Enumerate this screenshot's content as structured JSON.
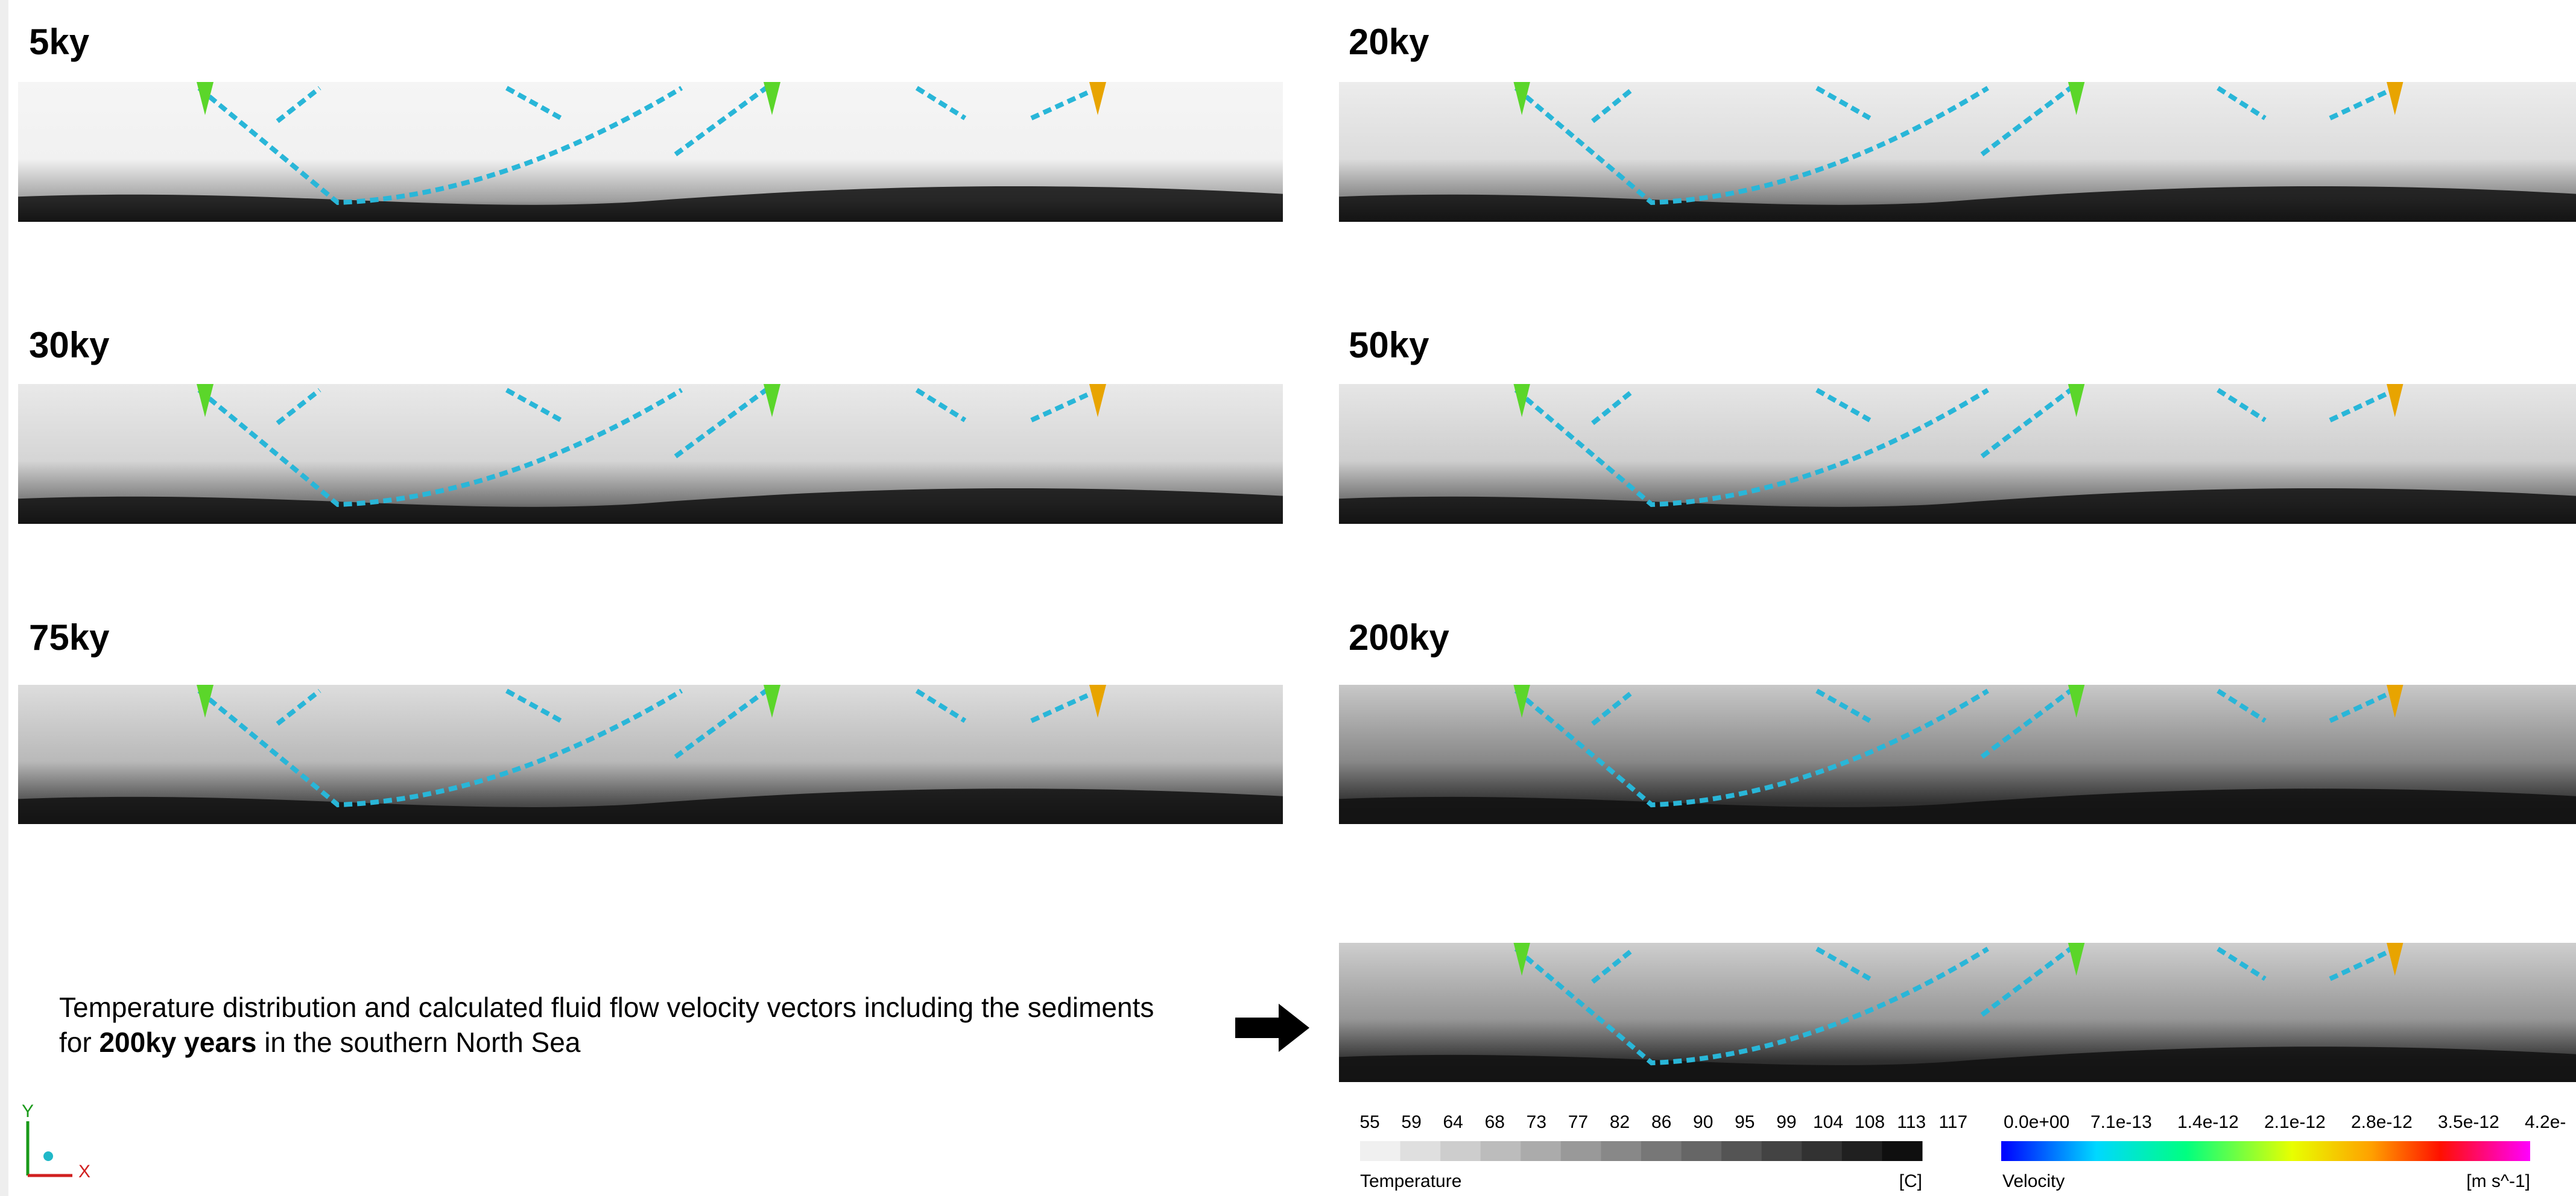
{
  "panels": [
    {
      "label": "5ky"
    },
    {
      "label": "20ky"
    },
    {
      "label": "30ky"
    },
    {
      "label": "50ky"
    },
    {
      "label": "75ky"
    },
    {
      "label": "200ky"
    }
  ],
  "caption": {
    "line1": "Temperature distribution and calculated fluid flow velocity vectors including the sediments",
    "line2_pre": "for",
    "line2_bold": "200ky years",
    "line2_post": "in the southern North Sea"
  },
  "temperature_legend": {
    "title": "Temperature",
    "unit": "[C]",
    "labels": [
      "55",
      "59",
      "64",
      "68",
      "73",
      "77",
      "82",
      "86",
      "90",
      "95",
      "99",
      "104",
      "108",
      "113",
      "117"
    ]
  },
  "velocity_legend": {
    "title": "Velocity",
    "unit": "[m s^-1]",
    "labels": [
      "0.0e+00",
      "7.1e-13",
      "1.4e-12",
      "2.1e-12",
      "2.8e-12",
      "3.5e-12",
      "4.2e-"
    ]
  },
  "axes_triad": {
    "y": "Y",
    "x": "X"
  }
}
